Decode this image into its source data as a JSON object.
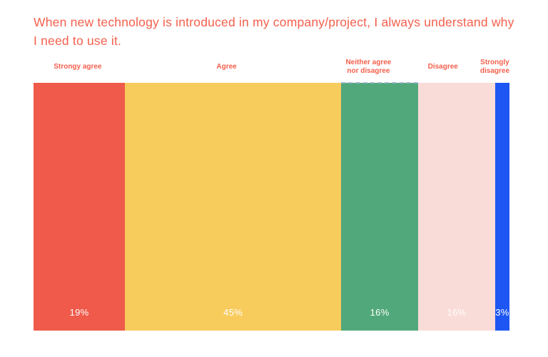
{
  "title": "When new technology is introduced in my company/project, I always understand why I need to use it.",
  "colors": {
    "title_text": "#F4604D",
    "category_label_text": "#F4604D",
    "value_label_text": "#FFFFFF",
    "background": "#FFFFFF",
    "selection_dash": "#9DB1D6"
  },
  "chart_data": {
    "type": "bar",
    "subtype": "100-percent-stacked-horizontal",
    "title": "When new technology is introduced in my company/project, I always understand why I need to use it.",
    "categories": [
      "Strongy agree",
      "Agree",
      "Neither agree\nnor disagree",
      "Disagree",
      "Strongly\ndisagree"
    ],
    "values": [
      19,
      45,
      16,
      16,
      3
    ],
    "value_labels": [
      "19%",
      "45%",
      "16%",
      "16%",
      "3%"
    ],
    "segment_colors": [
      "#EF5A4A",
      "#F8CB5D",
      "#51A87A",
      "#F9DBD8",
      "#1D56F2"
    ],
    "xlim": [
      0,
      100
    ],
    "grid": false,
    "legend_position": "top",
    "value_label_position": "inside-bottom-center",
    "selected_segment_index": 2
  }
}
